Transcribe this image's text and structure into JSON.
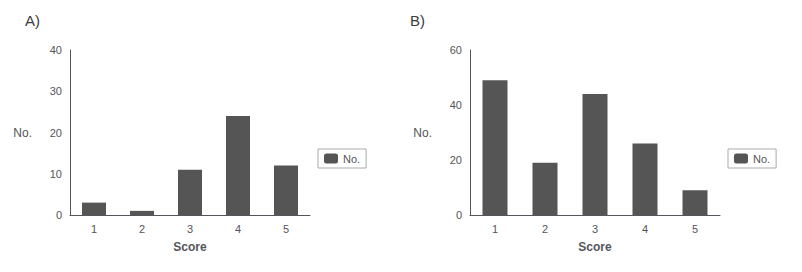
{
  "chart_data": [
    {
      "type": "bar",
      "title": "A)",
      "categories": [
        "1",
        "2",
        "3",
        "4",
        "5"
      ],
      "series": [
        {
          "name": "No.",
          "color": "#555555",
          "values": [
            3,
            1,
            11,
            24,
            12
          ]
        }
      ],
      "xlabel": "Score",
      "ylabel": "No.",
      "ylim": [
        0,
        40
      ],
      "yticks": [
        0,
        10,
        20,
        30,
        40
      ],
      "grid": false,
      "legend": "right"
    },
    {
      "type": "bar",
      "title": "B)",
      "categories": [
        "1",
        "2",
        "3",
        "4",
        "5"
      ],
      "series": [
        {
          "name": "No.",
          "color": "#555555",
          "values": [
            49,
            19,
            44,
            26,
            9
          ]
        }
      ],
      "xlabel": "Score",
      "ylabel": "No.",
      "ylim": [
        0,
        60
      ],
      "yticks": [
        0,
        20,
        40,
        60
      ],
      "grid": false,
      "legend": "right"
    }
  ]
}
